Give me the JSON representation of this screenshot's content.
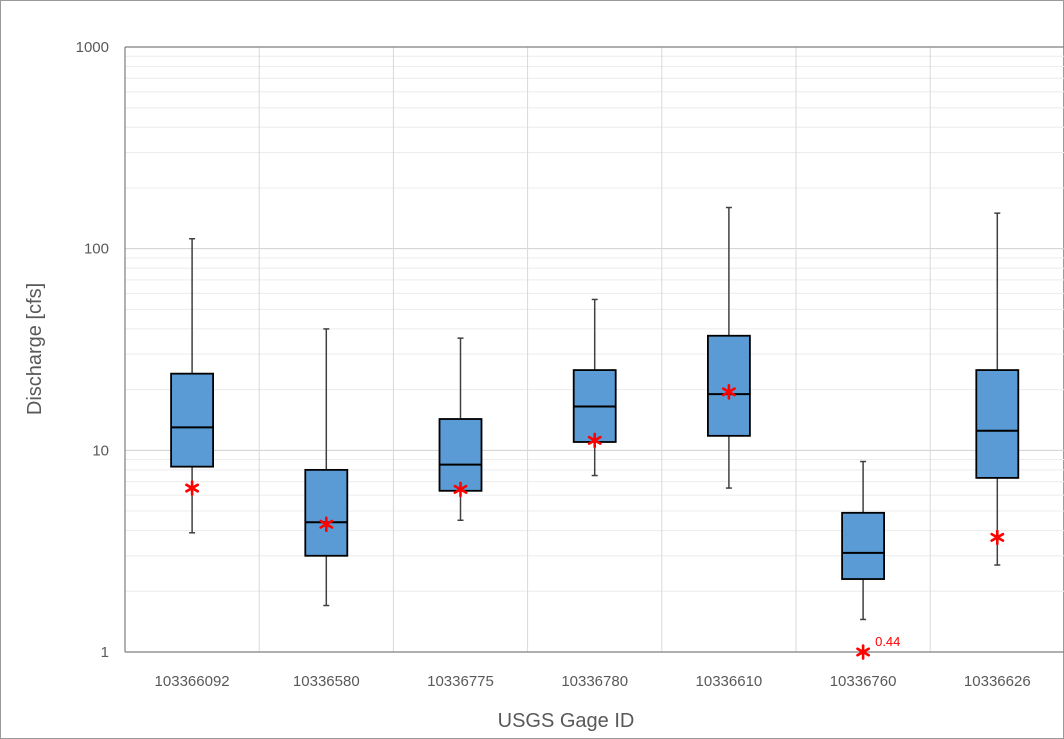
{
  "chart_data": {
    "type": "box",
    "title": "",
    "xlabel": "USGS Gage ID",
    "ylabel": "Discharge [cfs]",
    "yscale": "log",
    "ylim": [
      1,
      1000
    ],
    "yticks": [
      {
        "value": 1,
        "label": "1"
      },
      {
        "value": 10,
        "label": "10"
      },
      {
        "value": 100,
        "label": "100"
      },
      {
        "value": 1000,
        "label": "1000"
      }
    ],
    "grid": {
      "major": true,
      "minor_y": true
    },
    "colors": {
      "box_fill": "#5b9bd5",
      "marker": "#ff0000",
      "outline": "#000000",
      "whisker": "#404040"
    },
    "categories": [
      "103366092",
      "10336580",
      "10336775",
      "10336780",
      "10336610",
      "10336760",
      "10336626"
    ],
    "boxes": [
      {
        "min": 3.9,
        "q1": 8.3,
        "median": 13,
        "q3": 24,
        "max": 112,
        "marker": 6.5
      },
      {
        "min": 1.7,
        "q1": 3.0,
        "median": 4.4,
        "q3": 8.0,
        "max": 40,
        "marker": 4.3
      },
      {
        "min": 4.5,
        "q1": 6.3,
        "median": 8.5,
        "q3": 14.3,
        "max": 36,
        "marker": 6.4
      },
      {
        "min": 7.5,
        "q1": 11.0,
        "median": 16.5,
        "q3": 25,
        "max": 56,
        "marker": 11.2
      },
      {
        "min": 6.5,
        "q1": 11.8,
        "median": 19,
        "q3": 37,
        "max": 160,
        "marker": 19.5
      },
      {
        "min": 1.45,
        "q1": 2.3,
        "median": 3.1,
        "q3": 4.9,
        "max": 8.8,
        "marker": 0.44
      },
      {
        "min": 2.7,
        "q1": 7.3,
        "median": 12.5,
        "q3": 25,
        "max": 150,
        "marker": 3.7
      }
    ],
    "annotations": [
      {
        "category": "10336760",
        "value": 0.44,
        "label": "0.44"
      }
    ]
  }
}
